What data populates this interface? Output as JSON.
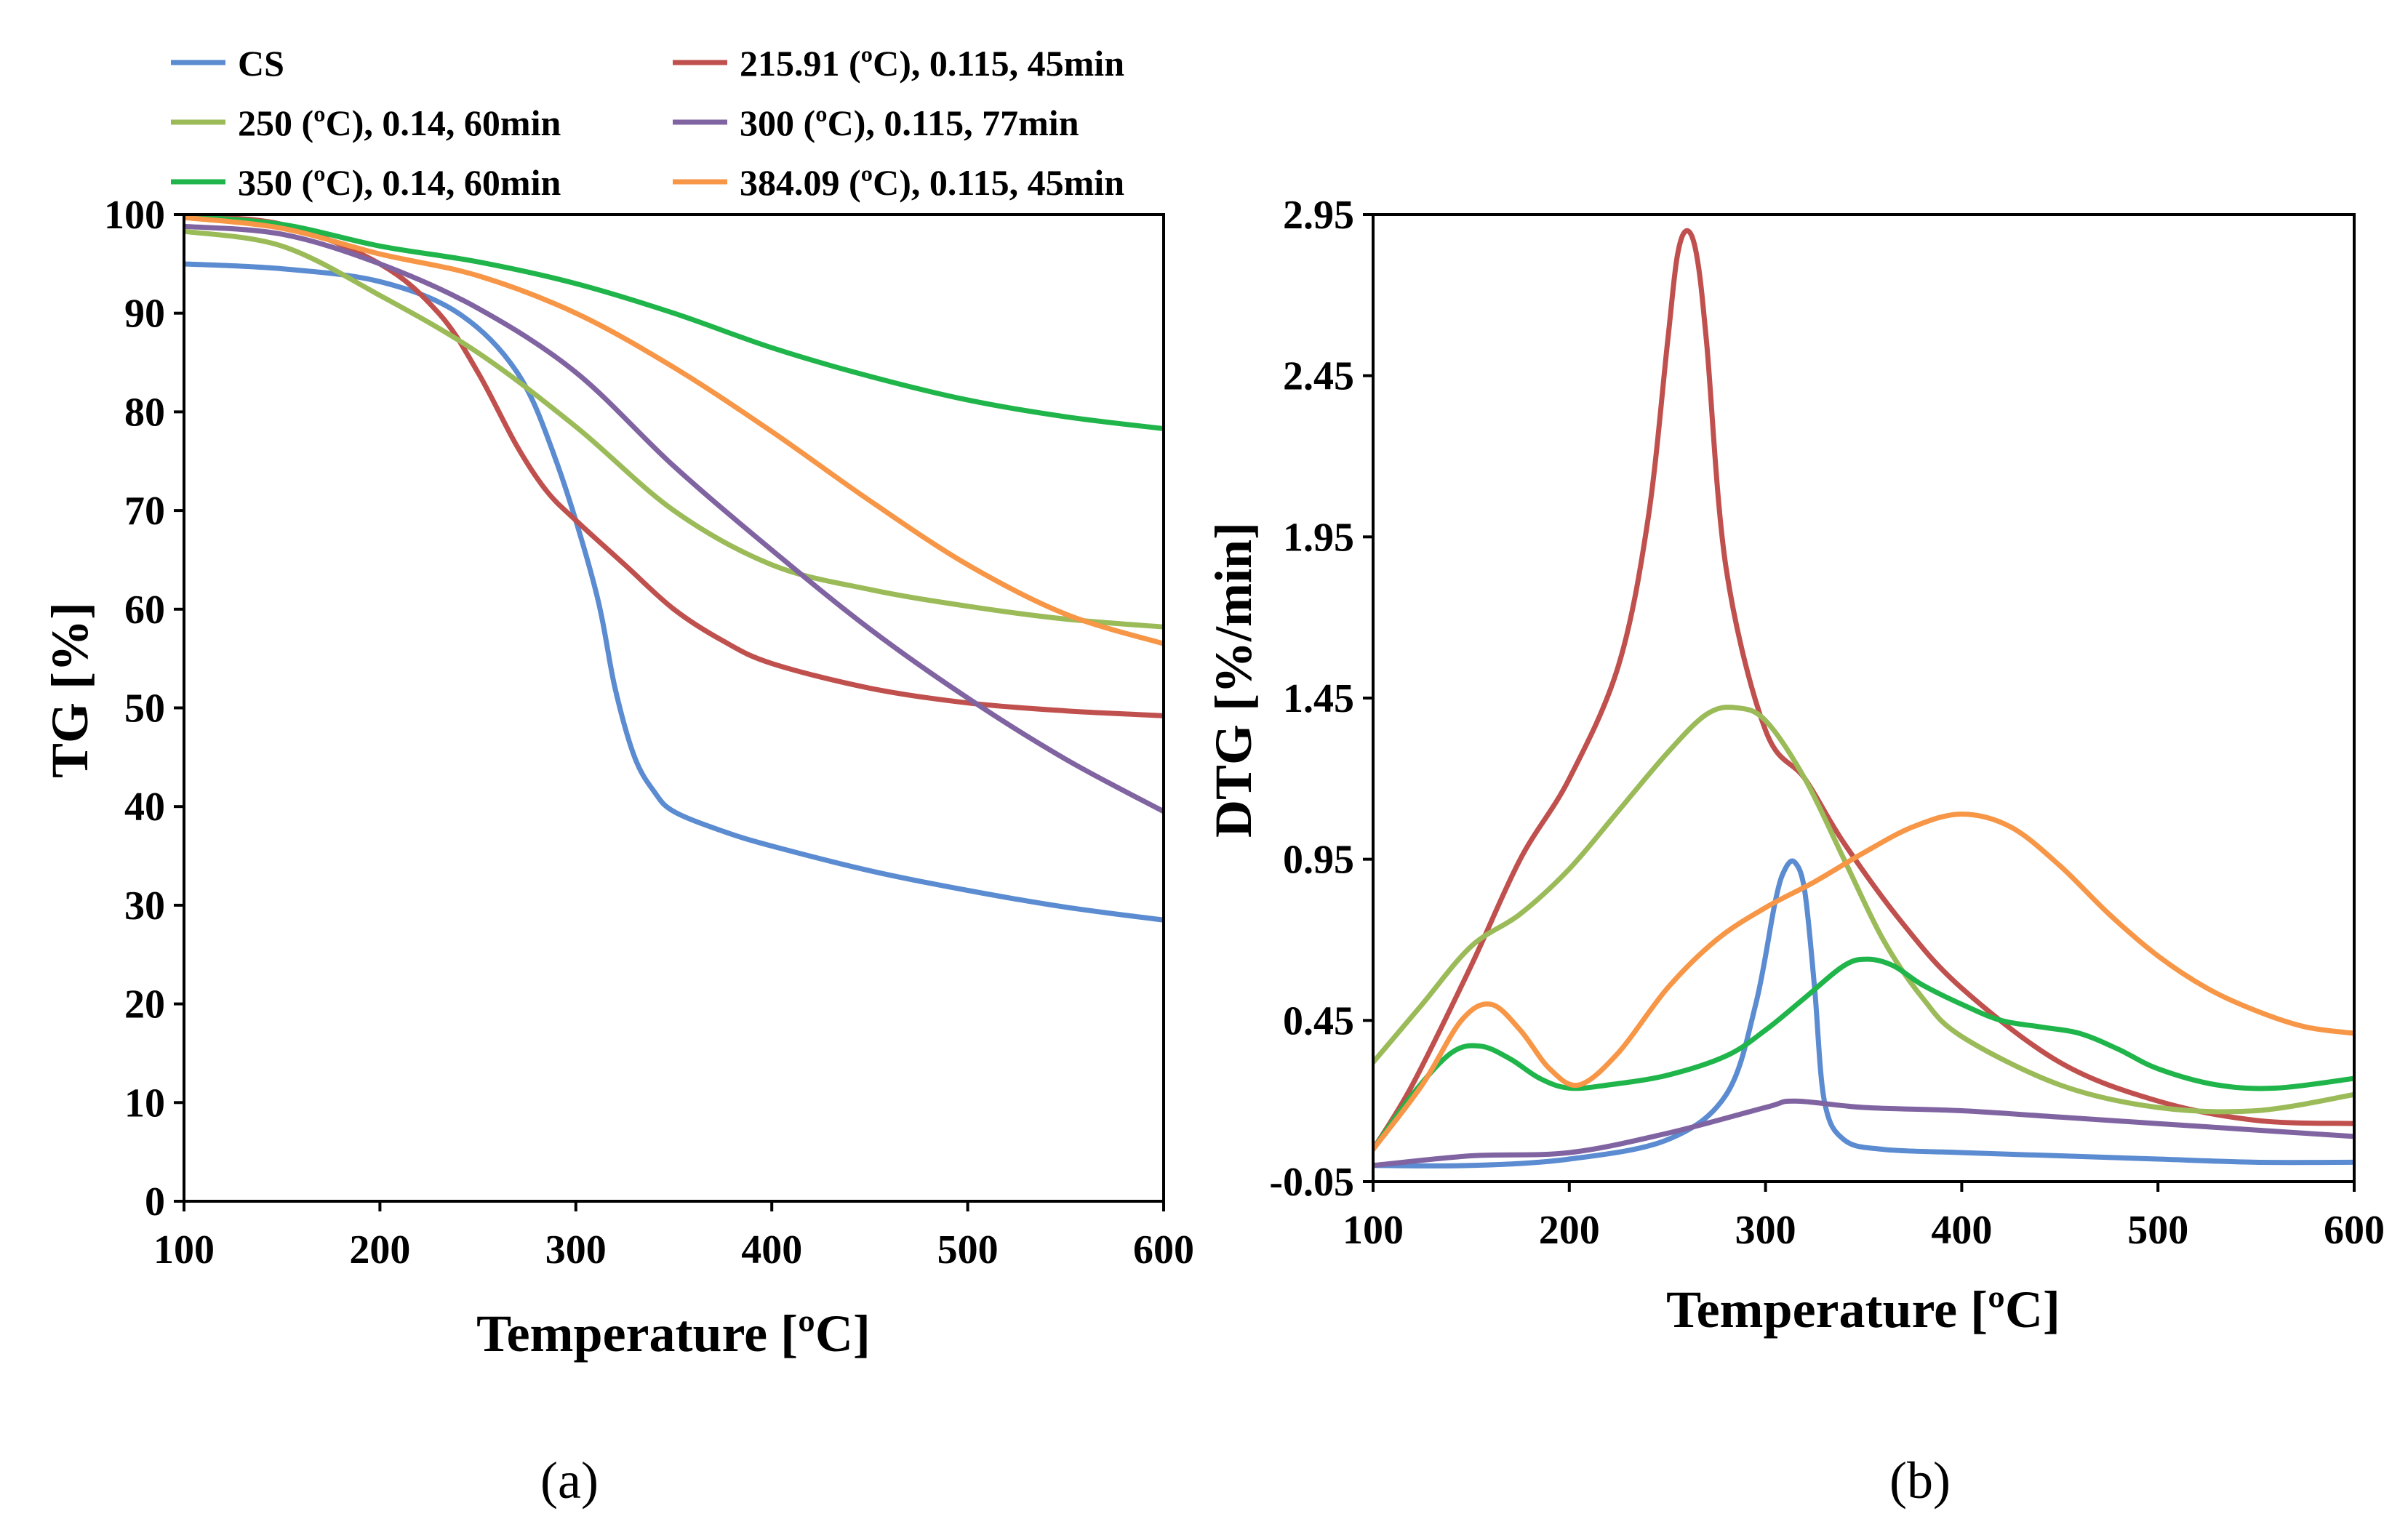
{
  "legend": {
    "entries": [
      {
        "name": "CS",
        "color": "#5B8BD0"
      },
      {
        "name": "215.91 (ºC), 0.115, 45min",
        "color": "#C0504D"
      },
      {
        "name": "250 (ºC), 0.14, 60min",
        "color": "#9BBB59"
      },
      {
        "name": "300 (ºC), 0.115, 77min",
        "color": "#8064A2"
      },
      {
        "name": "350 (ºC), 0.14, 60min",
        "color": "#1FB54A"
      },
      {
        "name": "384.09 (ºC), 0.115, 45min",
        "color": "#F79646"
      }
    ]
  },
  "chart_data": [
    {
      "panel_label": "(a)",
      "type": "line",
      "xlabel": "Temperature  [ºC]",
      "ylabel": "TG  [%]",
      "xlim": [
        100,
        600
      ],
      "ylim": [
        0,
        100
      ],
      "xticks": [
        "100",
        "200",
        "300",
        "400",
        "500",
        "600"
      ],
      "yticks": [
        "0",
        "10",
        "20",
        "30",
        "40",
        "50",
        "60",
        "70",
        "80",
        "90",
        "100"
      ],
      "grid": false,
      "legend_position": "top",
      "series": [
        {
          "name": "CS",
          "color": "#5B8BD0",
          "x": [
            100,
            150,
            200,
            240,
            270,
            290,
            310,
            320,
            330,
            340,
            350,
            375,
            400,
            450,
            500,
            550,
            600
          ],
          "y": [
            95.0,
            94.5,
            93.2,
            90.0,
            84.0,
            75.0,
            62.0,
            52.0,
            45.0,
            41.5,
            39.5,
            37.5,
            36.0,
            33.5,
            31.5,
            29.8,
            28.5
          ]
        },
        {
          "name": "215.91 (ºC), 0.115, 45min",
          "color": "#C0504D",
          "x": [
            100,
            150,
            200,
            230,
            250,
            270,
            285,
            300,
            325,
            350,
            375,
            400,
            450,
            500,
            550,
            600
          ],
          "y": [
            99.8,
            99.0,
            95.0,
            90.0,
            84.0,
            76.5,
            72.0,
            69.0,
            64.5,
            60.0,
            56.8,
            54.5,
            52.0,
            50.5,
            49.7,
            49.2
          ]
        },
        {
          "name": "250 (ºC), 0.14, 60min",
          "color": "#9BBB59",
          "x": [
            100,
            150,
            200,
            250,
            300,
            350,
            400,
            450,
            500,
            550,
            600
          ],
          "y": [
            98.3,
            96.8,
            91.8,
            86.0,
            78.5,
            70.0,
            64.5,
            62.0,
            60.3,
            59.0,
            58.2
          ]
        },
        {
          "name": "300 (ºC), 0.115, 77min",
          "color": "#8064A2",
          "x": [
            100,
            150,
            200,
            250,
            300,
            350,
            400,
            450,
            500,
            550,
            600
          ],
          "y": [
            98.8,
            98.0,
            95.0,
            90.5,
            84.0,
            74.5,
            66.0,
            58.0,
            51.0,
            44.8,
            39.5
          ]
        },
        {
          "name": "350 (ºC), 0.14, 60min",
          "color": "#1FB54A",
          "x": [
            100,
            150,
            200,
            250,
            300,
            350,
            400,
            450,
            500,
            550,
            600
          ],
          "y": [
            99.8,
            99.0,
            96.8,
            95.2,
            93.0,
            90.0,
            86.5,
            83.6,
            81.2,
            79.5,
            78.3
          ]
        },
        {
          "name": "384.09 (ºC), 0.115, 45min",
          "color": "#F79646",
          "x": [
            100,
            150,
            200,
            250,
            300,
            350,
            400,
            450,
            500,
            550,
            600
          ],
          "y": [
            99.7,
            98.6,
            96.0,
            93.8,
            90.0,
            84.5,
            78.0,
            71.0,
            64.5,
            59.5,
            56.5
          ]
        }
      ]
    },
    {
      "panel_label": "(b)",
      "type": "line",
      "xlabel": "Temperature  [ºC]",
      "ylabel": "DTG  [%/min]",
      "xlim": [
        100,
        600
      ],
      "ylim": [
        -0.05,
        2.95
      ],
      "xticks": [
        "100",
        "200",
        "300",
        "400",
        "500",
        "600"
      ],
      "yticks": [
        "-0.05",
        "0.45",
        "0.95",
        "1.45",
        "1.95",
        "2.45",
        "2.95"
      ],
      "grid": false,
      "series": [
        {
          "name": "CS",
          "color": "#5B8BD0",
          "x": [
            100,
            150,
            200,
            250,
            280,
            295,
            305,
            310,
            315,
            320,
            325,
            330,
            340,
            360,
            400,
            450,
            500,
            550,
            600
          ],
          "y": [
            0.0,
            0.0,
            0.02,
            0.08,
            0.22,
            0.5,
            0.82,
            0.92,
            0.94,
            0.85,
            0.55,
            0.2,
            0.08,
            0.05,
            0.04,
            0.03,
            0.02,
            0.01,
            0.01
          ]
        },
        {
          "name": "215.91 (ºC), 0.115, 45min",
          "color": "#C0504D",
          "x": [
            100,
            120,
            150,
            175,
            200,
            225,
            240,
            250,
            255,
            260,
            265,
            270,
            280,
            300,
            320,
            340,
            370,
            400,
            450,
            500,
            550,
            600
          ],
          "y": [
            0.05,
            0.25,
            0.62,
            0.95,
            1.2,
            1.55,
            2.0,
            2.55,
            2.82,
            2.9,
            2.82,
            2.55,
            1.85,
            1.35,
            1.2,
            1.0,
            0.75,
            0.55,
            0.32,
            0.2,
            0.14,
            0.13
          ]
        },
        {
          "name": "250 (ºC), 0.14, 60min",
          "color": "#9BBB59",
          "x": [
            100,
            125,
            150,
            175,
            200,
            225,
            250,
            270,
            285,
            300,
            320,
            340,
            360,
            380,
            400,
            450,
            500,
            550,
            600
          ],
          "y": [
            0.32,
            0.5,
            0.68,
            0.78,
            0.92,
            1.1,
            1.28,
            1.4,
            1.42,
            1.38,
            1.2,
            0.95,
            0.7,
            0.52,
            0.4,
            0.25,
            0.18,
            0.17,
            0.22
          ]
        },
        {
          "name": "300 (ºC), 0.115, 77min",
          "color": "#8064A2",
          "x": [
            100,
            150,
            200,
            250,
            300,
            315,
            350,
            400,
            450,
            500,
            550,
            600
          ],
          "y": [
            0.0,
            0.03,
            0.04,
            0.1,
            0.18,
            0.2,
            0.18,
            0.17,
            0.15,
            0.13,
            0.11,
            0.09
          ]
        },
        {
          "name": "350 (ºC), 0.14, 60min",
          "color": "#1FB54A",
          "x": [
            100,
            120,
            140,
            155,
            170,
            185,
            200,
            220,
            250,
            280,
            300,
            320,
            340,
            352,
            365,
            380,
            400,
            420,
            440,
            460,
            480,
            500,
            530,
            560,
            600
          ],
          "y": [
            0.05,
            0.22,
            0.35,
            0.37,
            0.33,
            0.27,
            0.24,
            0.25,
            0.28,
            0.34,
            0.42,
            0.52,
            0.62,
            0.64,
            0.62,
            0.56,
            0.5,
            0.45,
            0.43,
            0.41,
            0.36,
            0.3,
            0.25,
            0.24,
            0.27
          ]
        },
        {
          "name": "384.09 (ºC), 0.115, 45min",
          "color": "#F79646",
          "x": [
            100,
            125,
            145,
            160,
            175,
            190,
            205,
            225,
            250,
            275,
            300,
            325,
            350,
            375,
            400,
            425,
            450,
            475,
            500,
            525,
            550,
            575,
            600
          ],
          "y": [
            0.05,
            0.25,
            0.45,
            0.5,
            0.42,
            0.3,
            0.25,
            0.35,
            0.55,
            0.7,
            0.8,
            0.88,
            0.97,
            1.05,
            1.09,
            1.05,
            0.93,
            0.78,
            0.65,
            0.55,
            0.48,
            0.43,
            0.41
          ]
        }
      ]
    }
  ]
}
